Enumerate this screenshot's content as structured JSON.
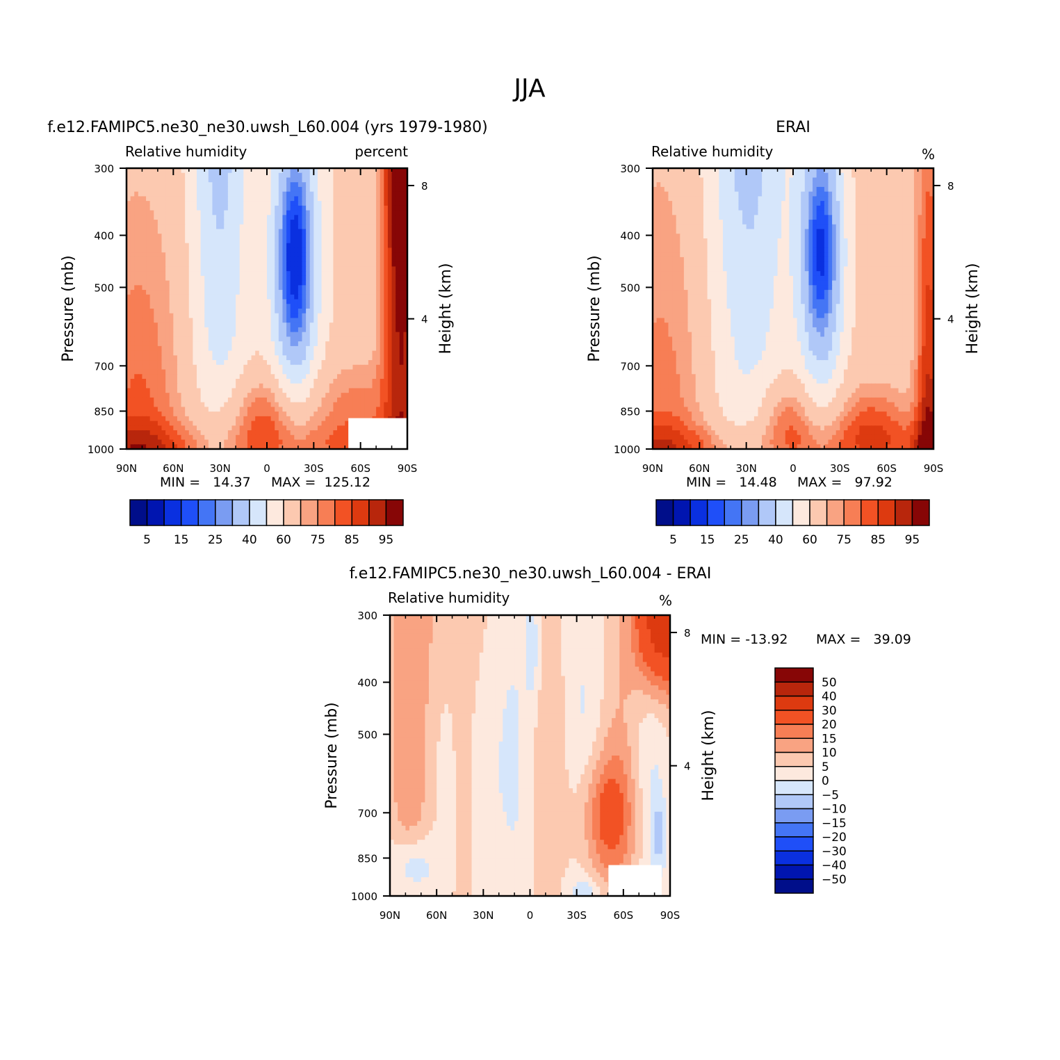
{
  "figure_title": "JJA",
  "chart_data": [
    {
      "type": "heatmap",
      "panel": "model",
      "case_title": "f.e12.FAMIPC5.ne30_ne30.uwsh_L60.004 (yrs 1979-1980)",
      "left_label": "Relative humidity",
      "right_label": "percent",
      "xlabel": "",
      "ylabel": "Pressure (mb)",
      "y2label": "Height (km)",
      "x_ticks": [
        "90N",
        "60N",
        "30N",
        "0",
        "30S",
        "60S",
        "90S"
      ],
      "x_range": [
        90,
        -90
      ],
      "y_ticks": [
        300,
        400,
        500,
        700,
        850,
        1000
      ],
      "y_range": [
        300,
        1000
      ],
      "y2_ticks": [
        8,
        4
      ],
      "min_label": "MIN =   14.37",
      "max_label": "MAX =  125.12",
      "min": 14.37,
      "max": 125.12,
      "levels": [
        5,
        10,
        15,
        20,
        25,
        30,
        40,
        50,
        60,
        70,
        75,
        80,
        85,
        90,
        95
      ],
      "colorbar_labels": [
        "5",
        "15",
        "25",
        "40",
        "60",
        "75",
        "85",
        "95"
      ],
      "features": [
        {
          "kind": "minimum",
          "lat": -20,
          "p": 520,
          "value": 14.37
        },
        {
          "kind": "moist_band",
          "lat": -85,
          "p": 350,
          "value": 98
        }
      ]
    },
    {
      "type": "heatmap",
      "panel": "obs",
      "case_title": "ERAI",
      "left_label": "Relative humidity",
      "right_label": "%",
      "xlabel": "",
      "ylabel": "Pressure (mb)",
      "y2label": "Height (km)",
      "x_ticks": [
        "90N",
        "60N",
        "30N",
        "0",
        "30S",
        "60S",
        "90S"
      ],
      "x_range": [
        90,
        -90
      ],
      "y_ticks": [
        300,
        400,
        500,
        700,
        850,
        1000
      ],
      "y_range": [
        300,
        1000
      ],
      "y2_ticks": [
        8,
        4
      ],
      "min_label": "MIN =   14.48",
      "max_label": "MAX =   97.92",
      "min": 14.48,
      "max": 97.92,
      "levels": [
        5,
        10,
        15,
        20,
        25,
        30,
        40,
        50,
        60,
        70,
        75,
        80,
        85,
        90,
        95
      ],
      "colorbar_labels": [
        "5",
        "15",
        "25",
        "40",
        "60",
        "75",
        "85",
        "95"
      ],
      "features": [
        {
          "kind": "minimum",
          "lat": -18,
          "p": 520,
          "value": 14.48
        }
      ]
    },
    {
      "type": "heatmap",
      "panel": "diff",
      "case_title": "f.e12.FAMIPC5.ne30_ne30.uwsh_L60.004 - ERAI",
      "left_label": "Relative humidity",
      "right_label": "%",
      "xlabel": "",
      "ylabel": "Pressure (mb)",
      "y2label": "Height (km)",
      "x_ticks": [
        "90N",
        "60N",
        "30N",
        "0",
        "30S",
        "60S",
        "90S"
      ],
      "x_range": [
        90,
        -90
      ],
      "y_ticks": [
        300,
        400,
        500,
        700,
        850,
        1000
      ],
      "y_range": [
        300,
        1000
      ],
      "y2_ticks": [
        8,
        4
      ],
      "min_label": "MIN = -13.92",
      "max_label": "MAX =   39.09",
      "min": -13.92,
      "max": 39.09,
      "levels": [
        -50,
        -40,
        -30,
        -20,
        -15,
        -10,
        -5,
        0,
        5,
        10,
        15,
        20,
        30,
        40,
        50
      ],
      "colorbar_labels": [
        "50",
        "40",
        "30",
        "20",
        "15",
        "10",
        "5",
        "0",
        "-5",
        "-10",
        "-15",
        "-20",
        "-30",
        "-40",
        "-50"
      ],
      "features": [
        {
          "kind": "maximum",
          "lat": -85,
          "p": 320,
          "value": 39.09
        },
        {
          "kind": "positive_anomaly",
          "lat": -45,
          "p": 780,
          "value": 18
        }
      ]
    }
  ],
  "colors": {
    "rh_palette": [
      "#000e8a",
      "#0015b0",
      "#0a30e0",
      "#1f4ff8",
      "#4475f5",
      "#7a9cf2",
      "#b0c8f8",
      "#d6e6fb",
      "#fde9de",
      "#fcc9b0",
      "#f9a382",
      "#f77e55",
      "#f25224",
      "#dd3a10",
      "#b8260c",
      "#870606"
    ],
    "diff_palette": [
      "#000e8a",
      "#0015b0",
      "#0a30e0",
      "#1f4ff8",
      "#4475f5",
      "#7a9cf2",
      "#b0c8f8",
      "#d6e6fb",
      "#fde9de",
      "#fcc9b0",
      "#f9a382",
      "#f77e55",
      "#f25224",
      "#dd3a10",
      "#b8260c",
      "#870606"
    ],
    "missing": "#ffffff"
  }
}
